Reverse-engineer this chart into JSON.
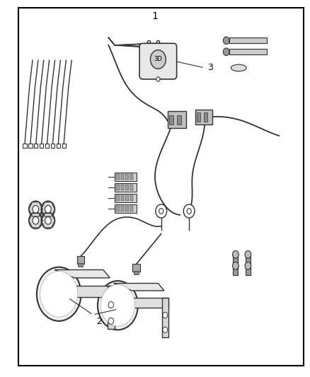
{
  "title": "1",
  "background_color": "#ffffff",
  "border_color": "#000000",
  "line_color": "#333333",
  "label_color": "#000000",
  "fig_width": 4.38,
  "fig_height": 5.33,
  "labels": {
    "1": [
      0.5,
      0.97
    ],
    "2": [
      0.32,
      0.16
    ],
    "3": [
      0.67,
      0.82
    ]
  },
  "border": [
    0.06,
    0.03,
    0.92,
    0.95
  ]
}
